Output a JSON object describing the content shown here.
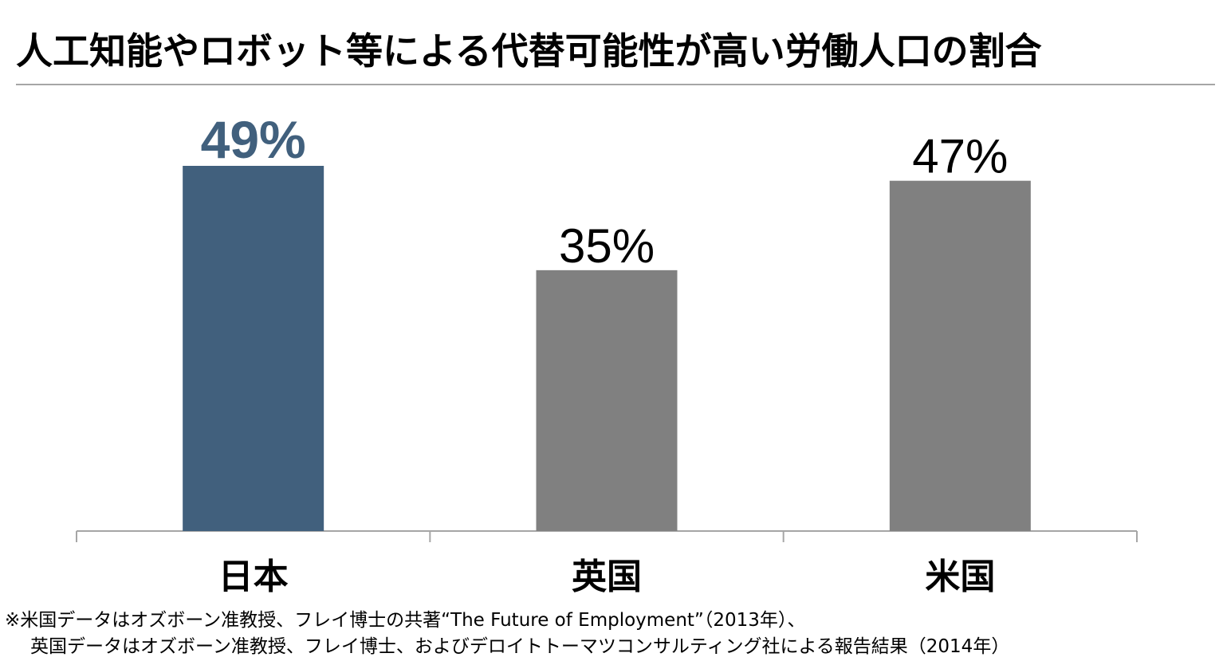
{
  "title": "人工知能やロボット等による代替可能性が高い労働人口の割合",
  "colors": {
    "highlight": "#41607d",
    "default": "#808080",
    "axis": "#a6a6a6"
  },
  "chart_data": {
    "type": "bar",
    "categories": [
      "日本",
      "英国",
      "米国"
    ],
    "values": [
      49,
      35,
      47
    ],
    "data_labels": [
      "49%",
      "35%",
      "47%"
    ],
    "highlighted_index": 0,
    "ylim": [
      0,
      49
    ],
    "grid": false,
    "legend": "none",
    "title": "",
    "xlabel": "",
    "ylabel": ""
  },
  "footnote": {
    "line1": "※米国データはオズボーン准教授、フレイ博士の共著“The Future of Employment”（2013年）、",
    "line2": "英国データはオズボーン准教授、フレイ博士、およびデロイトトーマツコンサルティング社による報告結果（2014年）"
  }
}
